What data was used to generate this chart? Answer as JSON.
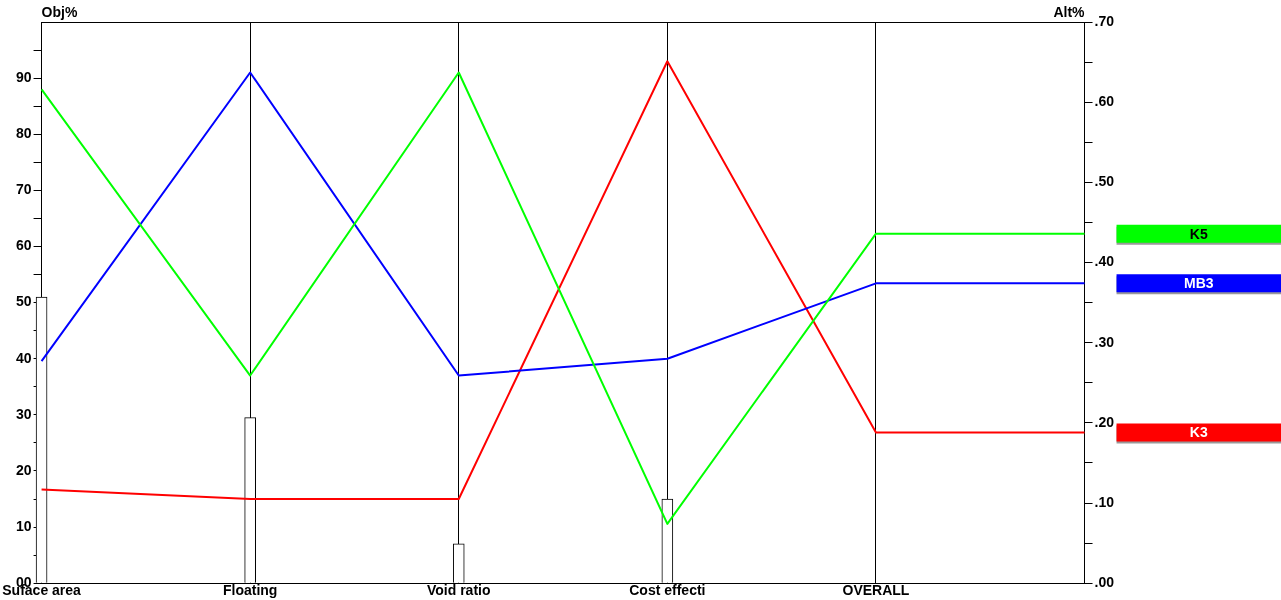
{
  "chart_data": {
    "type": "line",
    "categories": [
      "Suface area",
      "Floating",
      "Void ratio",
      "Cost effecti",
      "OVERALL",
      null
    ],
    "ylabel": "Obj%",
    "y2label": "Alt%",
    "ylim": [
      0,
      100
    ],
    "yticks": [
      {
        "value": 0,
        "label": "00"
      },
      {
        "value": 5,
        "label": null
      },
      10,
      {
        "value": 15,
        "label": null
      },
      20,
      {
        "value": 25,
        "label": null
      },
      30,
      {
        "value": 35,
        "label": null
      },
      40,
      {
        "value": 45,
        "label": null
      },
      50,
      {
        "value": 55,
        "label": null
      },
      60,
      {
        "value": 65,
        "label": null
      },
      70,
      {
        "value": 75,
        "label": null
      },
      80,
      {
        "value": 85,
        "label": null
      },
      90,
      {
        "value": 95,
        "label": null
      }
    ],
    "y2lim": [
      0,
      0.7
    ],
    "y2ticks": [
      {
        "value": 0,
        "label": ".00"
      },
      {
        "value": 0.05,
        "label": null
      },
      {
        "value": 0.1,
        "label": ".10"
      },
      {
        "value": 0.15,
        "label": null
      },
      {
        "value": 0.2,
        "label": ".20"
      },
      {
        "value": 0.25,
        "label": null
      },
      {
        "value": 0.3,
        "label": ".30"
      },
      {
        "value": 0.35,
        "label": null
      },
      {
        "value": 0.4,
        "label": ".40"
      },
      {
        "value": 0.45,
        "label": null
      },
      {
        "value": 0.5,
        "label": ".50"
      },
      {
        "value": 0.55,
        "label": null
      },
      {
        "value": 0.6,
        "label": ".60"
      },
      {
        "value": 0.65,
        "label": null
      },
      {
        "value": 0.7,
        "label": ".70"
      }
    ],
    "grid": "x",
    "marker": "none",
    "series": [
      {
        "type": "bar",
        "color": "#ffffff",
        "values": [
          51,
          29.5,
          7,
          15,
          null,
          null
        ]
      },
      {
        "name": "K5",
        "color": "#00ff00",
        "axis": "y2",
        "values": [
          0.616,
          0.259,
          0.637,
          0.074,
          0.436,
          0.436
        ]
      },
      {
        "name": "MB3",
        "color": "#0000ff",
        "axis": "y2",
        "values": [
          0.277,
          0.637,
          0.259,
          0.28,
          0.374,
          0.374
        ]
      },
      {
        "name": "K3",
        "color": "#ff0000",
        "axis": "y2",
        "values": [
          0.117,
          0.105,
          0.105,
          0.651,
          0.188,
          0.188
        ]
      }
    ]
  }
}
